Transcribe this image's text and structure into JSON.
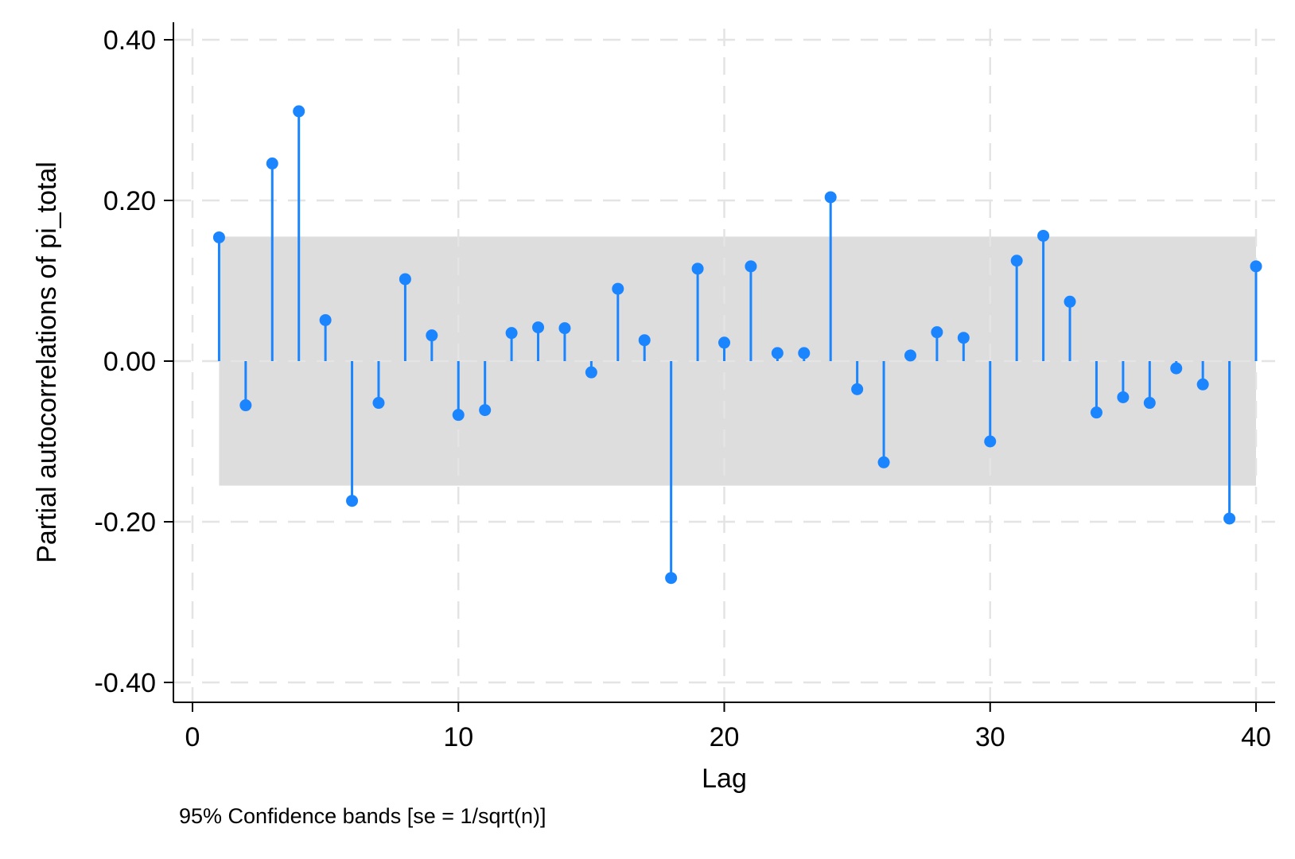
{
  "chart_data": {
    "type": "scatter",
    "style": "stem",
    "xlabel": "Lag",
    "ylabel": "Partial autocorrelations of pi_total",
    "note": "95% Confidence bands [se = 1/sqrt(n)]",
    "xlim": [
      0,
      40
    ],
    "ylim": [
      -0.4,
      0.4
    ],
    "xticks": [
      0,
      10,
      20,
      30,
      40
    ],
    "xtick_labels": [
      "0",
      "10",
      "20",
      "30",
      "40"
    ],
    "yticks": [
      -0.4,
      -0.2,
      0,
      0.2,
      0.4
    ],
    "ytick_labels": [
      "-0.40",
      "-0.20",
      "0.00",
      "0.20",
      "0.40"
    ],
    "grid": true,
    "confidence_band": {
      "x_from": 1,
      "x_to": 40,
      "lower": -0.155,
      "upper": 0.155
    },
    "x": [
      1,
      2,
      3,
      4,
      5,
      6,
      7,
      8,
      9,
      10,
      11,
      12,
      13,
      14,
      15,
      16,
      17,
      18,
      19,
      20,
      21,
      22,
      23,
      24,
      25,
      26,
      27,
      28,
      29,
      30,
      31,
      32,
      33,
      34,
      35,
      36,
      37,
      38,
      39,
      40
    ],
    "values": [
      0.154,
      -0.055,
      0.246,
      0.311,
      0.051,
      -0.174,
      -0.052,
      0.102,
      0.032,
      -0.067,
      -0.061,
      0.035,
      0.042,
      0.041,
      -0.014,
      0.09,
      0.026,
      -0.27,
      0.115,
      0.023,
      0.118,
      0.01,
      0.01,
      0.204,
      -0.035,
      -0.126,
      0.007,
      0.036,
      0.029,
      -0.1,
      0.125,
      0.156,
      0.074,
      -0.064,
      -0.045,
      -0.052,
      -0.009,
      -0.029,
      -0.196,
      0.118
    ],
    "colors": {
      "marker": "#1a85ff",
      "band": "#dddddd",
      "grid": "#e4e4e4",
      "axis": "#000000"
    }
  }
}
